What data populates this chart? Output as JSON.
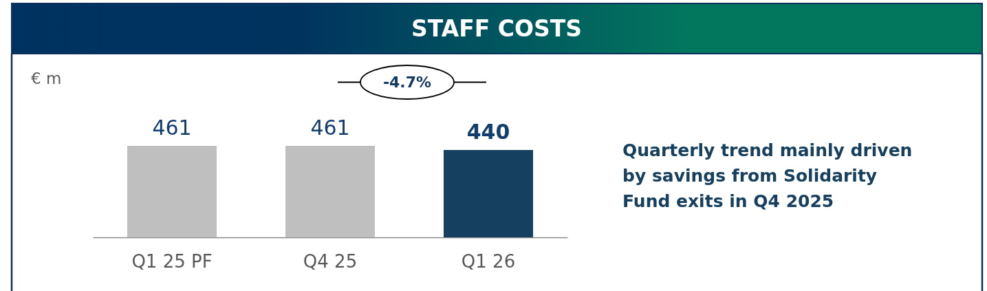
{
  "chart_data": {
    "type": "bar",
    "title": "STAFF COSTS",
    "ylabel": "€ m",
    "categories": [
      "Q1 25 PF",
      "Q4 25",
      "Q1 26"
    ],
    "values": [
      461,
      461,
      440
    ],
    "colors": [
      "#bfbfbf",
      "#bfbfbf",
      "#15405f"
    ],
    "data_labels": true,
    "annotations": [
      "-4.7%",
      "Quarterly trend mainly driven by savings from Solidarity Fund exits in Q4 2025"
    ]
  }
}
